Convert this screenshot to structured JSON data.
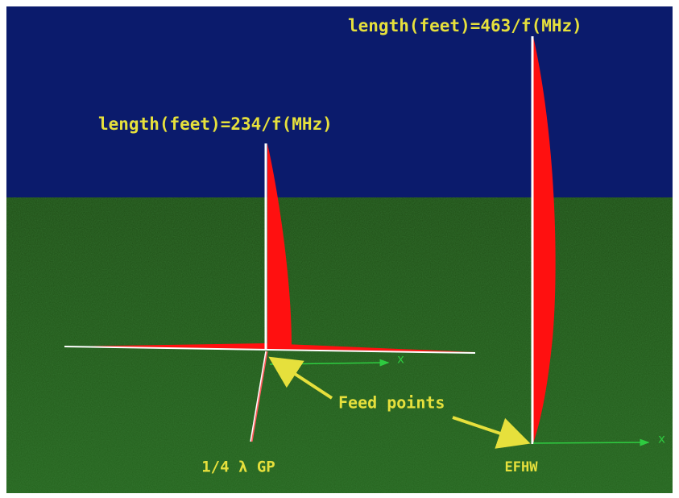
{
  "labels": {
    "efhw_formula": "length(feet)=463/f(MHz)",
    "gp_formula": "length(feet)=234/f(MHz)",
    "feed_points": "Feed points",
    "gp_name": "1/4 λ GP",
    "efhw_name": "EFHW",
    "gp_axis": "x",
    "efhw_axis": "x"
  }
}
